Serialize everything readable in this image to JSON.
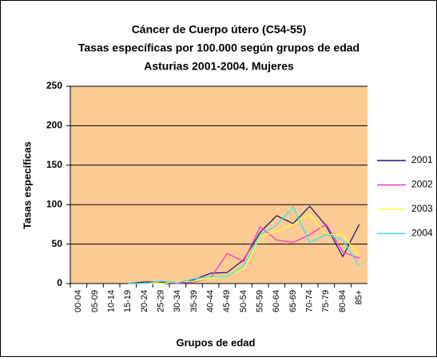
{
  "chart_data": {
    "type": "line",
    "title": [
      "Cáncer de Cuerpo útero (C54-55)",
      "Tasas específicas por 100.000 según grupos de edad",
      "Asturias 2001-2004. Mujeres"
    ],
    "y_label": "Tasas específicas",
    "x_label": "Grupos de edad",
    "categories": [
      "00-04",
      "05-09",
      "10-14",
      "15-19",
      "20-24",
      "25-29",
      "30-34",
      "35-39",
      "40-44",
      "45-49",
      "50-54",
      "55-59",
      "60-64",
      "65-69",
      "70-74",
      "75-79",
      "80-84",
      "85+"
    ],
    "series": [
      {
        "name": "2001",
        "color": "#1a1a6e",
        "values": [
          null,
          null,
          null,
          0,
          2,
          2,
          0,
          5,
          13,
          14,
          30,
          65,
          86,
          76,
          98,
          73,
          34,
          75
        ]
      },
      {
        "name": "2002",
        "color": "#ff33cc",
        "values": [
          null,
          null,
          null,
          0,
          0,
          3,
          0,
          2,
          7,
          38,
          28,
          72,
          55,
          52,
          62,
          75,
          40,
          32
        ]
      },
      {
        "name": "2003",
        "color": "#ffff33",
        "values": [
          null,
          null,
          null,
          0,
          0,
          0,
          2,
          3,
          7,
          10,
          18,
          60,
          66,
          75,
          88,
          62,
          62,
          35
        ]
      },
      {
        "name": "2004",
        "color": "#33e6e6",
        "values": [
          null,
          null,
          null,
          0,
          0,
          3,
          1,
          6,
          9,
          9,
          22,
          62,
          74,
          97,
          52,
          62,
          55,
          22
        ]
      }
    ],
    "ylim": [
      0,
      250
    ],
    "yticks": [
      0,
      50,
      100,
      150,
      200,
      250
    ],
    "grid": true,
    "legend": "right"
  }
}
